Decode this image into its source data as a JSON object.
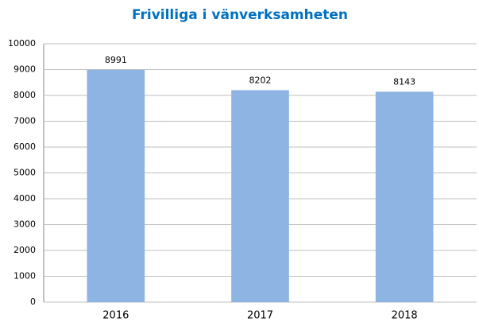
{
  "chart_data": {
    "type": "bar",
    "title": "Frivilliga i vänverksamheten",
    "categories": [
      "2016",
      "2017",
      "2018"
    ],
    "values": [
      8991,
      8202,
      8143
    ],
    "color": "#8eb4e3",
    "ylim": [
      0,
      10000
    ],
    "yticks": [
      0,
      1000,
      2000,
      3000,
      4000,
      5000,
      6000,
      7000,
      8000,
      9000,
      10000
    ],
    "grid": true
  }
}
